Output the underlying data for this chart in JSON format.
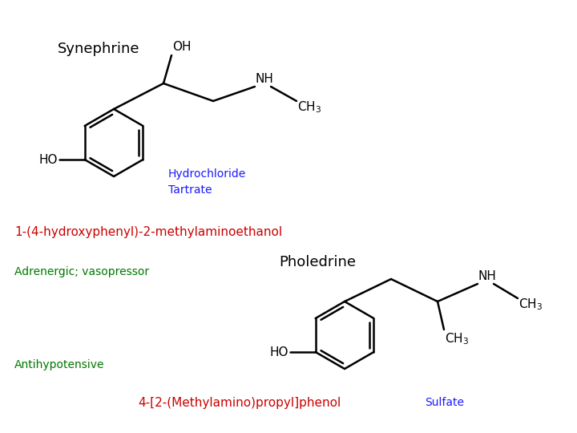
{
  "bg_color": "#ffffff",
  "title_synephrine": "Synephrine",
  "title_pholedrine": "Pholedrine",
  "label_hydrochloride": "Hydrochloride",
  "label_tartrate": "Tartrate",
  "label_iupac1": "1-(4-hydroxyphenyl)-2-methylaminoethanol",
  "label_adrenergic": "Adrenergic; vasopressor",
  "label_antihypotensive": "Antihypotensive",
  "label_iupac2": "4-[2-(Methylamino)propyl]phenol",
  "label_sulfate": "Sulfate",
  "color_black": "#000000",
  "color_blue": "#1a1aff",
  "color_red": "#cc0000",
  "color_green": "#007700",
  "figsize": [
    7.2,
    5.4
  ],
  "dpi": 100
}
